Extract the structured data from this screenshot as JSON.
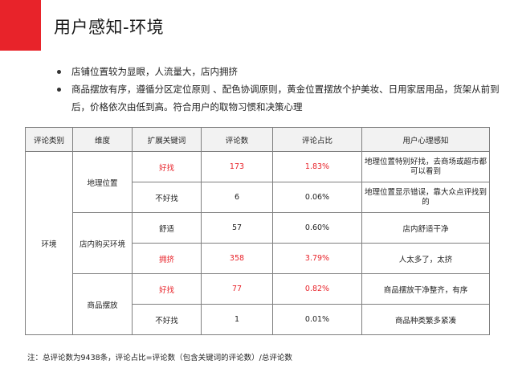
{
  "title": "用户感知-环境",
  "bullets": [
    "店铺位置较为显眼，人流量大，店内拥挤",
    "商品摆放有序，遵循分区定位原则 、配色协调原则，黄金位置摆放个护美妆、日用家居用品，货架从前到后，价格依次由低到高。符合用户的取物习惯和决策心理"
  ],
  "table": {
    "headers": [
      "评论类别",
      "维度",
      "扩展关键词",
      "评论数",
      "评论占比",
      "用户心理感知"
    ],
    "category": "环境",
    "dimensions": [
      "地理位置",
      "店内购买环境",
      "商品摆放"
    ],
    "rows": [
      {
        "keyword": "好找",
        "count": "173",
        "ratio": "1.83%",
        "perception": "地理位置特别好找，去商场或超市都可以看到"
      },
      {
        "keyword": "不好找",
        "count": "6",
        "ratio": "0.06%",
        "perception": "地理位置显示错误，靠大众点评找到的"
      },
      {
        "keyword": "舒适",
        "count": "57",
        "ratio": "0.60%",
        "perception": "店内舒适干净"
      },
      {
        "keyword": "拥挤",
        "count": "358",
        "ratio": "3.79%",
        "perception": "人太多了，太挤"
      },
      {
        "keyword": "好找",
        "count": "77",
        "ratio": "0.82%",
        "perception": "商品摆放干净整齐，有序"
      },
      {
        "keyword": "不好找",
        "count": "1",
        "ratio": "0.01%",
        "perception": "商品种类繁多紧凑"
      }
    ]
  },
  "footnote": "注：总评论数为9438条，评论占比=评论数（包含关键词的评论数）/总评论数",
  "colors": {
    "accent": "#e8232a",
    "highlight_text": "#e8232a",
    "header_bg": "#f2f2f2",
    "border": "#7f7f7f"
  }
}
